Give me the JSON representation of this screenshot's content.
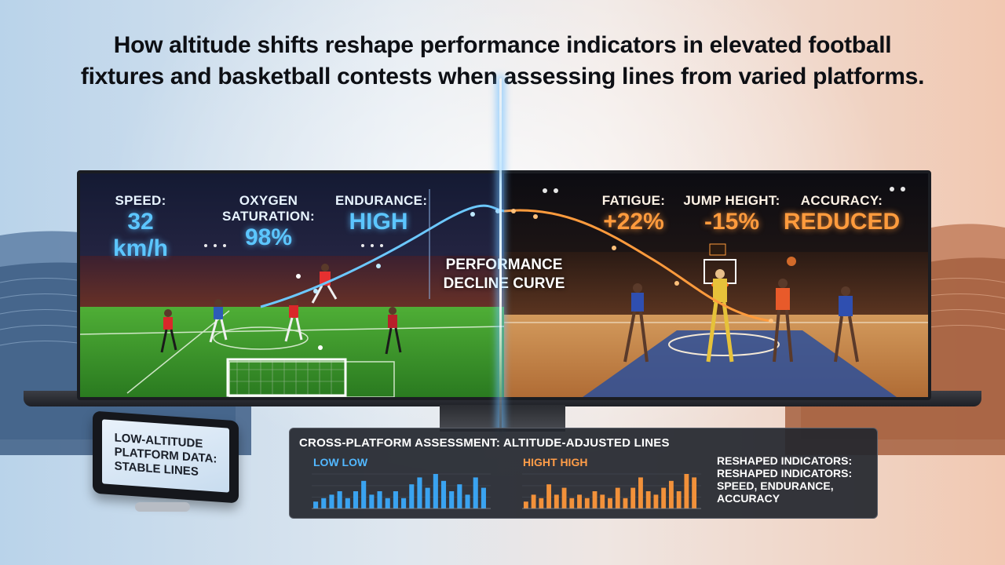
{
  "headline": {
    "line1": "How altitude shifts reshape performance indicators in elevated football",
    "line2": "fixtures and basketball contests when assessing lines from varied platforms."
  },
  "football_metrics": [
    {
      "label": "SPEED:",
      "value": "32 km/h"
    },
    {
      "label": "OXYGEN SATURATION:",
      "value": "98%"
    },
    {
      "label": "ENDURANCE:",
      "value": "HIGH"
    }
  ],
  "basketball_metrics": [
    {
      "label": "FATIGUE:",
      "value": "+22%"
    },
    {
      "label": "JUMP HEIGHT:",
      "value": "-15%"
    },
    {
      "label": "ACCURACY:",
      "value": "REDUCED"
    }
  ],
  "curve_label": {
    "line1": "PERFORMANCE",
    "line2": "DECLINE CURVE"
  },
  "tablet": {
    "text": "LOW-ALTITUDE\nPLATFORM DATA:\nSTABLE LINES"
  },
  "panel": {
    "title": "CROSS-PLATFORM ASSESSMENT: ALTITUDE-ADJUSTED LINES",
    "low_label": "LOW LOW",
    "high_label": "HIGHT HIGH",
    "side_note": [
      "RESHAPED INDICATORS:",
      "RESHAPED INDICATORS:",
      "SPEED, ENDURANCE,",
      "ACCURACY"
    ]
  },
  "colors": {
    "blue_accent": "#5cc6ff",
    "orange_accent": "#ff9b3d",
    "pitch_green": "#3f9a2c",
    "court_wood": "#c98a4c"
  },
  "chart_data": [
    {
      "type": "bar",
      "title": "LOW LOW",
      "values": [
        2,
        3,
        4,
        5,
        3,
        5,
        8,
        4,
        5,
        3,
        5,
        3,
        7,
        9,
        6,
        10,
        8,
        5,
        7,
        4,
        9,
        6
      ],
      "color": "#3aa3f0"
    },
    {
      "type": "bar",
      "title": "HIGHT HIGH",
      "values": [
        2,
        4,
        3,
        7,
        4,
        6,
        3,
        4,
        3,
        5,
        4,
        3,
        6,
        3,
        6,
        9,
        5,
        4,
        6,
        8,
        5,
        10,
        9
      ],
      "color": "#f2913a"
    }
  ]
}
